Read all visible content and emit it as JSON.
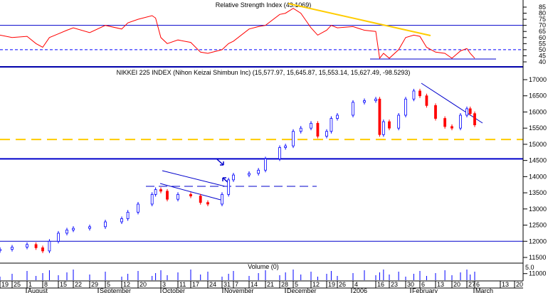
{
  "chart_data": [
    {
      "type": "line",
      "title": "Relative Strength Index (43.1069)",
      "ylim": [
        37,
        88
      ],
      "yticks": [
        85,
        80,
        75,
        70,
        65,
        60,
        55,
        50,
        45,
        40
      ],
      "reference_lines": [
        {
          "value": 70,
          "style": "solid",
          "color": "#0000cc"
        },
        {
          "value": 50,
          "style": "dashed",
          "color": "#0000ff"
        }
      ],
      "series": [
        {
          "color": "#ff0000",
          "points": [
            [
              "2005-07-19",
              62
            ],
            [
              "2005-07-25",
              60
            ],
            [
              "2005-08-01",
              61
            ],
            [
              "2005-08-05",
              55
            ],
            [
              "2005-08-08",
              52
            ],
            [
              "2005-08-11",
              60
            ],
            [
              "2005-08-15",
              63
            ],
            [
              "2005-08-19",
              66
            ],
            [
              "2005-08-22",
              68
            ],
            [
              "2005-08-29",
              64
            ],
            [
              "2005-09-05",
              70
            ],
            [
              "2005-09-12",
              67
            ],
            [
              "2005-09-15",
              72
            ],
            [
              "2005-09-20",
              75
            ],
            [
              "2005-09-28",
              78
            ],
            [
              "2005-09-30",
              76
            ],
            [
              "2005-10-03",
              60
            ],
            [
              "2005-10-06",
              55
            ],
            [
              "2005-10-11",
              58
            ],
            [
              "2005-10-17",
              56
            ],
            [
              "2005-10-21",
              48
            ],
            [
              "2005-10-24",
              47
            ],
            [
              "2005-10-31",
              50
            ],
            [
              "2005-11-04",
              55
            ],
            [
              "2005-11-07",
              57
            ],
            [
              "2005-11-14",
              67
            ],
            [
              "2005-11-18",
              69
            ],
            [
              "2005-11-21",
              70
            ],
            [
              "2005-11-28",
              79
            ],
            [
              "2005-12-01",
              80
            ],
            [
              "2005-12-05",
              84
            ],
            [
              "2005-12-08",
              80
            ],
            [
              "2005-12-12",
              68
            ],
            [
              "2005-12-15",
              62
            ],
            [
              "2005-12-19",
              66
            ],
            [
              "2005-12-22",
              70
            ],
            [
              "2005-12-26",
              68
            ],
            [
              "2006-01-04",
              69
            ],
            [
              "2006-01-10",
              66
            ],
            [
              "2006-01-16",
              65
            ],
            [
              "2006-01-18",
              43
            ],
            [
              "2006-01-20",
              47
            ],
            [
              "2006-01-23",
              43
            ],
            [
              "2006-01-27",
              50
            ],
            [
              "2006-01-30",
              60
            ],
            [
              "2006-02-03",
              62
            ],
            [
              "2006-02-06",
              61
            ],
            [
              "2006-02-09",
              52
            ],
            [
              "2006-02-13",
              48
            ],
            [
              "2006-02-17",
              47
            ],
            [
              "2006-02-20",
              43
            ],
            [
              "2006-02-24",
              49
            ],
            [
              "2006-02-27",
              51
            ],
            [
              "2006-03-02",
              47
            ],
            [
              "2006-03-06",
              43
            ]
          ]
        }
      ]
    },
    {
      "type": "candlestick",
      "title": "NIKKEI 225 INDEX (Nihon Keizai Shimbun Inc) (15,577.97, 15,645.87, 15,553.14, 15,627.49, -98.5293)",
      "ylim": [
        11000,
        17300
      ],
      "yticks": [
        17000,
        16500,
        16000,
        15500,
        15000,
        14500,
        14000,
        13500,
        13000,
        12500,
        12000,
        11500,
        11000
      ],
      "reference_lines": [
        {
          "value": 15150,
          "style": "dashed",
          "color": "#ffcc00"
        },
        {
          "value": 14550,
          "style": "solid",
          "color": "#0000cc"
        },
        {
          "value": 12000,
          "style": "solid",
          "color": "#0000cc"
        },
        {
          "value": 13700,
          "style": "dashed",
          "color": "#0000cc"
        }
      ],
      "up_color": "#0000ff",
      "down_color": "#ff0000",
      "closes": [
        [
          "2005-07-19",
          11750
        ],
        [
          "2005-07-25",
          11820
        ],
        [
          "2005-08-01",
          11900
        ],
        [
          "2005-08-05",
          11800
        ],
        [
          "2005-08-08",
          11700
        ],
        [
          "2005-08-11",
          12000
        ],
        [
          "2005-08-15",
          12250
        ],
        [
          "2005-08-19",
          12350
        ],
        [
          "2005-08-22",
          12400
        ],
        [
          "2005-08-29",
          12450
        ],
        [
          "2005-09-05",
          12600
        ],
        [
          "2005-09-12",
          12700
        ],
        [
          "2005-09-15",
          12900
        ],
        [
          "2005-09-20",
          13150
        ],
        [
          "2005-09-28",
          13450
        ],
        [
          "2005-09-30",
          13600
        ],
        [
          "2005-10-03",
          13550
        ],
        [
          "2005-10-06",
          13300
        ],
        [
          "2005-10-11",
          13450
        ],
        [
          "2005-10-17",
          13400
        ],
        [
          "2005-10-21",
          13200
        ],
        [
          "2005-10-24",
          13150
        ],
        [
          "2005-10-31",
          13450
        ],
        [
          "2005-11-04",
          13900
        ],
        [
          "2005-11-07",
          14050
        ],
        [
          "2005-11-14",
          14100
        ],
        [
          "2005-11-18",
          14200
        ],
        [
          "2005-11-21",
          14550
        ],
        [
          "2005-11-28",
          14900
        ],
        [
          "2005-12-01",
          14950
        ],
        [
          "2005-12-05",
          15400
        ],
        [
          "2005-12-08",
          15500
        ],
        [
          "2005-12-12",
          15650
        ],
        [
          "2005-12-15",
          15250
        ],
        [
          "2005-12-19",
          15400
        ],
        [
          "2005-12-22",
          15800
        ],
        [
          "2005-12-26",
          15900
        ],
        [
          "2006-01-04",
          16300
        ],
        [
          "2006-01-10",
          16350
        ],
        [
          "2006-01-16",
          16400
        ],
        [
          "2006-01-18",
          15300
        ],
        [
          "2006-01-20",
          15700
        ],
        [
          "2006-01-23",
          15500
        ],
        [
          "2006-01-27",
          15900
        ],
        [
          "2006-01-30",
          16400
        ],
        [
          "2006-02-03",
          16650
        ],
        [
          "2006-02-06",
          16500
        ],
        [
          "2006-02-09",
          16200
        ],
        [
          "2006-02-13",
          15800
        ],
        [
          "2006-02-17",
          15550
        ],
        [
          "2006-02-20",
          15500
        ],
        [
          "2006-02-24",
          15900
        ],
        [
          "2006-02-27",
          16100
        ],
        [
          "2006-03-02",
          15950
        ],
        [
          "2006-03-06",
          15600
        ]
      ]
    },
    {
      "type": "bar",
      "title": "Volume (0)",
      "ytick_label": "5.0",
      "color": "#0000ff"
    }
  ],
  "x_axis": {
    "day_ticks": [
      [
        "2005-07-19",
        "19"
      ],
      [
        "2005-07-25",
        "25"
      ],
      [
        "2005-08-01",
        "1"
      ],
      [
        "2005-08-08",
        "8"
      ],
      [
        "2005-08-15",
        "15"
      ],
      [
        "2005-08-22",
        "22"
      ],
      [
        "2005-08-29",
        "29"
      ],
      [
        "2005-09-05",
        "5"
      ],
      [
        "2005-09-12",
        "12"
      ],
      [
        "2005-09-20",
        "20"
      ],
      [
        "2005-10-03",
        "3"
      ],
      [
        "2005-10-11",
        "11"
      ],
      [
        "2005-10-17",
        "17"
      ],
      [
        "2005-10-24",
        "24"
      ],
      [
        "2005-10-31",
        "31"
      ],
      [
        "2005-11-07",
        "7"
      ],
      [
        "2005-11-14",
        "14"
      ],
      [
        "2005-11-21",
        "21"
      ],
      [
        "2005-11-28",
        "28"
      ],
      [
        "2005-12-05",
        "5"
      ],
      [
        "2005-12-12",
        "12"
      ],
      [
        "2005-12-19",
        "19"
      ],
      [
        "2005-12-26",
        "26"
      ],
      [
        "2006-01-04",
        "4"
      ],
      [
        "2006-01-16",
        "16"
      ],
      [
        "2006-01-23",
        "23"
      ],
      [
        "2006-01-30",
        "30"
      ],
      [
        "2006-02-06",
        "6"
      ],
      [
        "2006-02-13",
        "13"
      ],
      [
        "2006-02-20",
        "20"
      ],
      [
        "2006-02-27",
        "27"
      ],
      [
        "2006-03-06",
        "6"
      ],
      [
        "2006-03-13",
        "13"
      ],
      [
        "2006-03-20",
        "20"
      ]
    ],
    "month_labels": [
      "August",
      "September",
      "October",
      "November",
      "December",
      "2006",
      "February",
      "March"
    ]
  },
  "colors": {
    "rsi": "#ff0000",
    "trendline_rsi": "#ffcc00",
    "guide": "#0000cc"
  }
}
